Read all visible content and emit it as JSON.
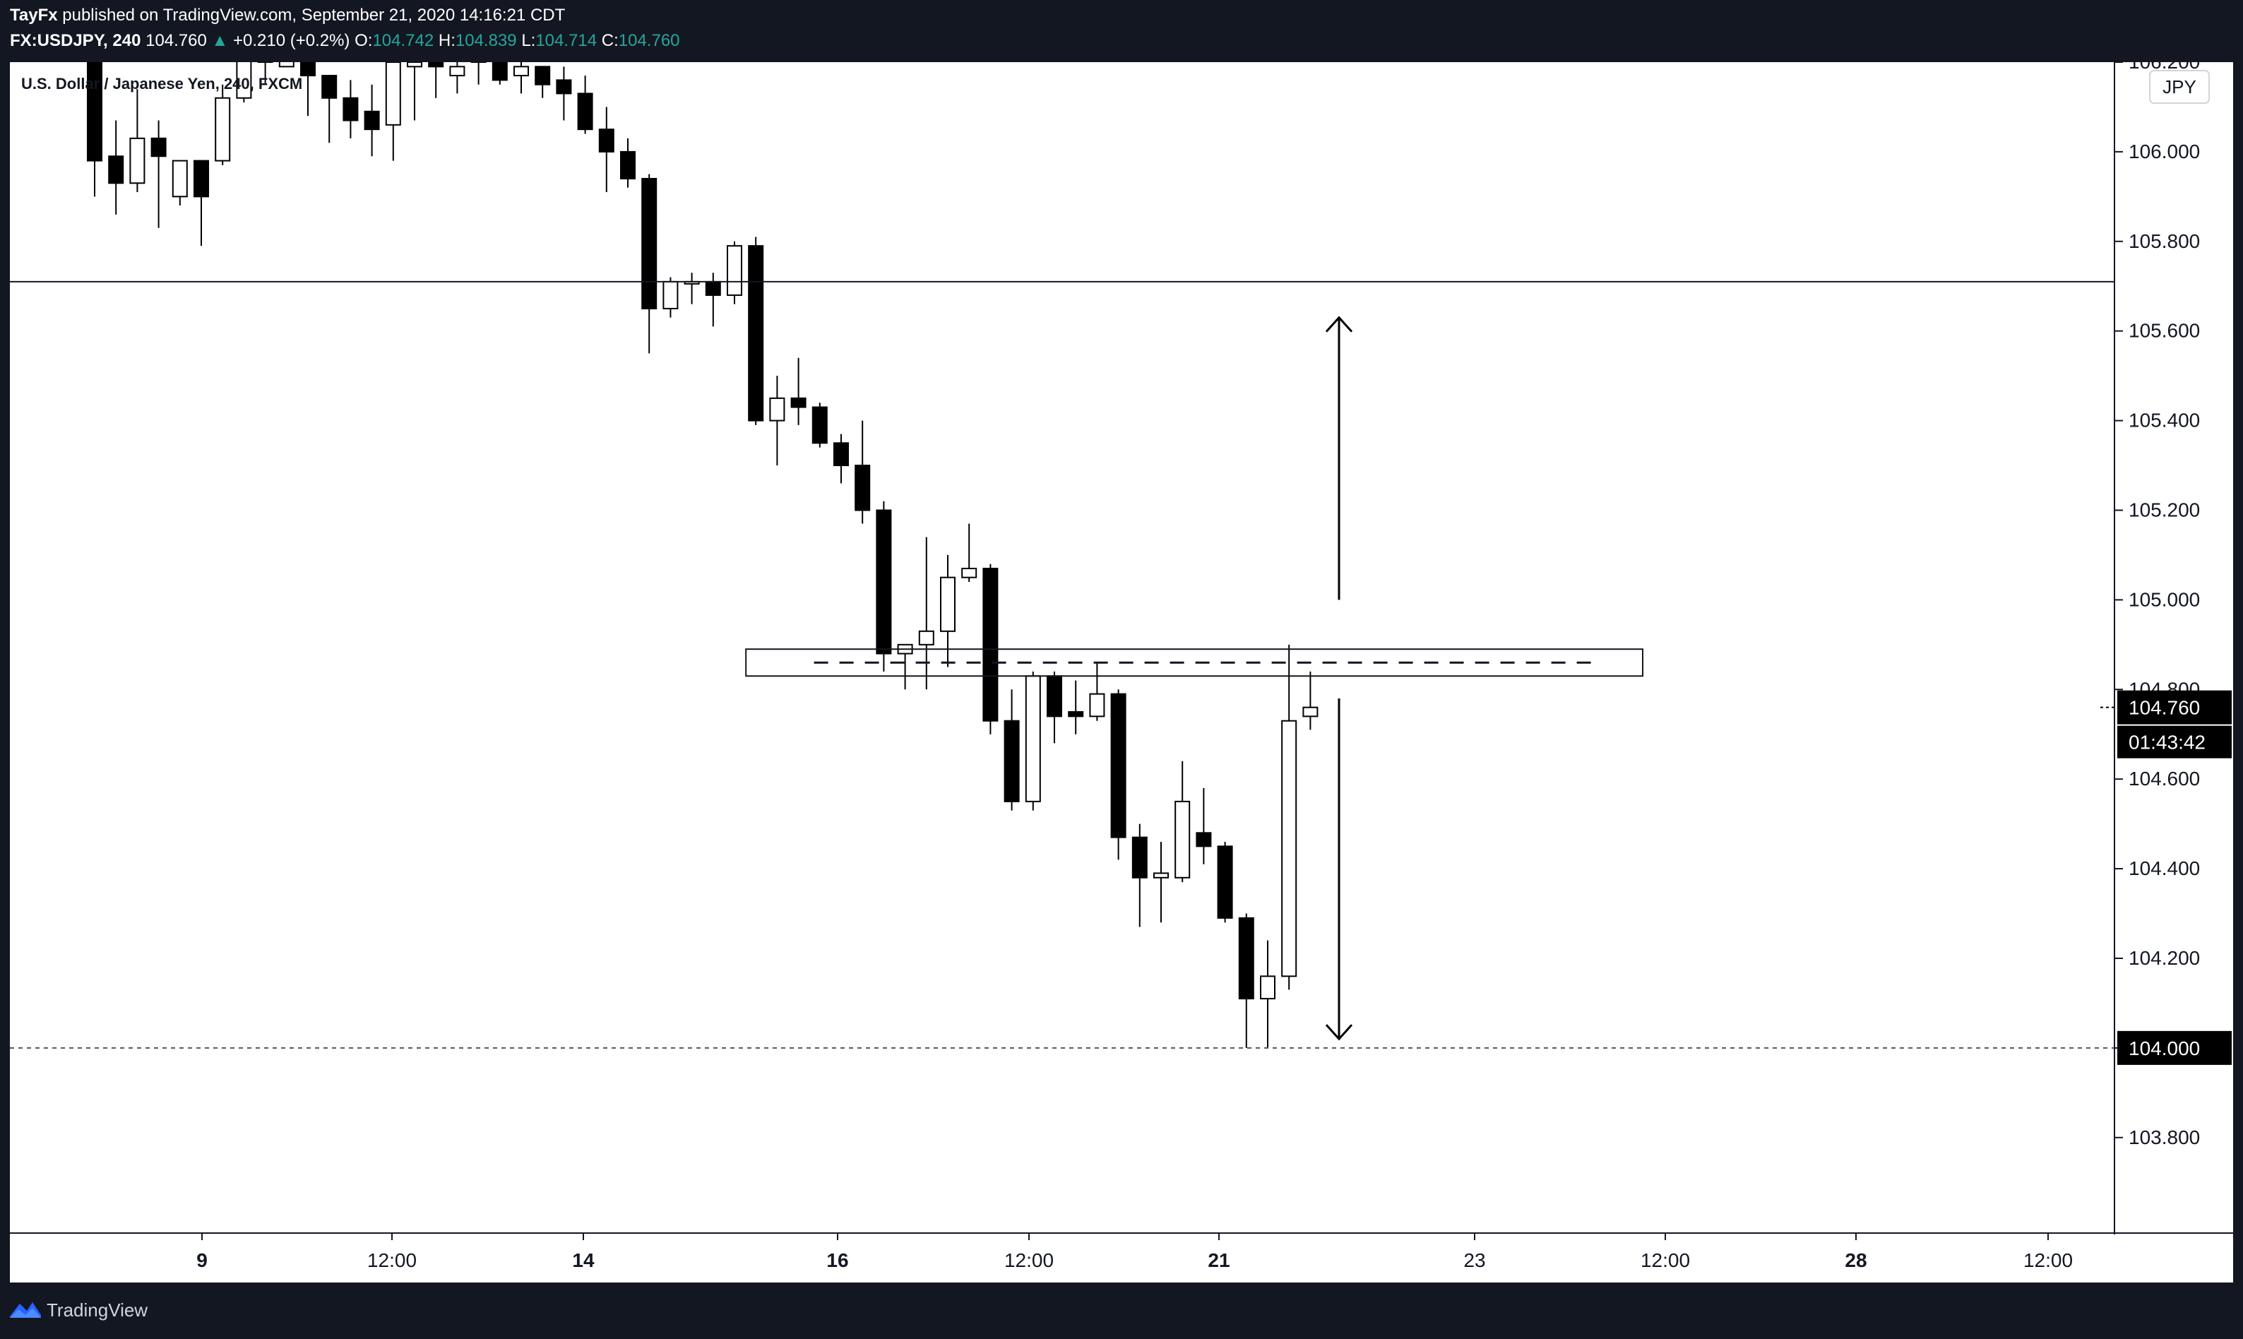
{
  "header": {
    "publisher": "TayFx",
    "published_text": "published on TradingView.com, September 21, 2020 14:16:21 CDT",
    "symbol": "FX:USDJPY, 240",
    "last": "104.760",
    "change_arrow": "▲",
    "change": "+0.210 (+0.2%)",
    "o_label": "O:",
    "o_value": "104.742",
    "h_label": "H:",
    "h_value": "104.839",
    "l_label": "L:",
    "l_value": "104.714",
    "c_label": "C:",
    "c_value": "104.760"
  },
  "chart_title": "U.S. Dollar / Japanese Yen, 240, FXCM",
  "currency_badge": "JPY",
  "footer": {
    "brand": "TradingView"
  },
  "chart_data": {
    "type": "candlestick",
    "title": "U.S. Dollar / Japanese Yen, 240, FXCM",
    "ylim": [
      103.59,
      106.2
    ],
    "y_ticks": [
      "103.800",
      "104.000",
      "104.200",
      "104.400",
      "104.600",
      "104.800",
      "105.000",
      "105.200",
      "105.400",
      "105.600",
      "105.800",
      "106.000",
      "106.200"
    ],
    "x_ticks": [
      "9",
      "12:00",
      "14",
      "16",
      "12:00",
      "21",
      "23",
      "12:00",
      "28",
      "12:00"
    ],
    "x_ticks_bold": [
      "9",
      "14",
      "16",
      "21",
      "28"
    ],
    "last_price_label": "104.760",
    "countdown_label": "01:43:42",
    "level_label": "104.000",
    "candles": [
      {
        "o": 106.29,
        "h": 106.3,
        "l": 105.9,
        "c": 105.98
      },
      {
        "o": 105.99,
        "h": 106.07,
        "l": 105.86,
        "c": 105.93
      },
      {
        "o": 105.93,
        "h": 106.14,
        "l": 105.91,
        "c": 106.03
      },
      {
        "o": 106.03,
        "h": 106.07,
        "l": 105.83,
        "c": 105.99
      },
      {
        "o": 105.9,
        "h": 105.98,
        "l": 105.88,
        "c": 105.98
      },
      {
        "o": 105.98,
        "h": 105.98,
        "l": 105.79,
        "c": 105.9
      },
      {
        "o": 105.98,
        "h": 106.15,
        "l": 105.97,
        "c": 106.12
      },
      {
        "o": 106.12,
        "h": 106.3,
        "l": 106.11,
        "c": 106.25
      },
      {
        "o": 106.25,
        "h": 106.3,
        "l": 106.15,
        "c": 106.2
      },
      {
        "o": 106.19,
        "h": 106.28,
        "l": 106.19,
        "c": 106.22
      },
      {
        "o": 106.22,
        "h": 106.23,
        "l": 106.08,
        "c": 106.17
      },
      {
        "o": 106.17,
        "h": 106.17,
        "l": 106.02,
        "c": 106.12
      },
      {
        "o": 106.12,
        "h": 106.16,
        "l": 106.03,
        "c": 106.07
      },
      {
        "o": 106.09,
        "h": 106.15,
        "l": 105.99,
        "c": 106.05
      },
      {
        "o": 106.06,
        "h": 106.23,
        "l": 105.98,
        "c": 106.2
      },
      {
        "o": 106.19,
        "h": 106.22,
        "l": 106.07,
        "c": 106.2
      },
      {
        "o": 106.2,
        "h": 106.22,
        "l": 106.12,
        "c": 106.19
      },
      {
        "o": 106.17,
        "h": 106.24,
        "l": 106.13,
        "c": 106.19
      },
      {
        "o": 106.2,
        "h": 106.3,
        "l": 106.15,
        "c": 106.25
      },
      {
        "o": 106.24,
        "h": 106.27,
        "l": 106.15,
        "c": 106.16
      },
      {
        "o": 106.17,
        "h": 106.25,
        "l": 106.13,
        "c": 106.19
      },
      {
        "o": 106.19,
        "h": 106.19,
        "l": 106.12,
        "c": 106.15
      },
      {
        "o": 106.16,
        "h": 106.19,
        "l": 106.07,
        "c": 106.13
      },
      {
        "o": 106.13,
        "h": 106.17,
        "l": 106.04,
        "c": 106.05
      },
      {
        "o": 106.05,
        "h": 106.1,
        "l": 105.91,
        "c": 106.0
      },
      {
        "o": 106.0,
        "h": 106.03,
        "l": 105.92,
        "c": 105.94
      },
      {
        "o": 105.94,
        "h": 105.95,
        "l": 105.55,
        "c": 105.65
      },
      {
        "o": 105.65,
        "h": 105.72,
        "l": 105.63,
        "c": 105.71
      },
      {
        "o": 105.71,
        "h": 105.73,
        "l": 105.66,
        "c": 105.71
      },
      {
        "o": 105.71,
        "h": 105.73,
        "l": 105.61,
        "c": 105.68
      },
      {
        "o": 105.68,
        "h": 105.8,
        "l": 105.66,
        "c": 105.79
      },
      {
        "o": 105.79,
        "h": 105.81,
        "l": 105.39,
        "c": 105.4
      },
      {
        "o": 105.4,
        "h": 105.5,
        "l": 105.3,
        "c": 105.45
      },
      {
        "o": 105.45,
        "h": 105.54,
        "l": 105.39,
        "c": 105.43
      },
      {
        "o": 105.43,
        "h": 105.44,
        "l": 105.34,
        "c": 105.35
      },
      {
        "o": 105.35,
        "h": 105.37,
        "l": 105.26,
        "c": 105.3
      },
      {
        "o": 105.3,
        "h": 105.4,
        "l": 105.17,
        "c": 105.2
      },
      {
        "o": 105.2,
        "h": 105.22,
        "l": 104.84,
        "c": 104.88
      },
      {
        "o": 104.88,
        "h": 104.9,
        "l": 104.8,
        "c": 104.9
      },
      {
        "o": 104.9,
        "h": 105.14,
        "l": 104.8,
        "c": 104.93
      },
      {
        "o": 104.93,
        "h": 105.1,
        "l": 104.85,
        "c": 105.05
      },
      {
        "o": 105.05,
        "h": 105.17,
        "l": 105.04,
        "c": 105.07
      },
      {
        "o": 105.07,
        "h": 105.08,
        "l": 104.7,
        "c": 104.73
      },
      {
        "o": 104.73,
        "h": 104.8,
        "l": 104.53,
        "c": 104.55
      },
      {
        "o": 104.55,
        "h": 104.84,
        "l": 104.53,
        "c": 104.83
      },
      {
        "o": 104.83,
        "h": 104.84,
        "l": 104.68,
        "c": 104.74
      },
      {
        "o": 104.75,
        "h": 104.82,
        "l": 104.7,
        "c": 104.74
      },
      {
        "o": 104.74,
        "h": 104.86,
        "l": 104.73,
        "c": 104.79
      },
      {
        "o": 104.79,
        "h": 104.8,
        "l": 104.42,
        "c": 104.47
      },
      {
        "o": 104.47,
        "h": 104.5,
        "l": 104.27,
        "c": 104.38
      },
      {
        "o": 104.38,
        "h": 104.46,
        "l": 104.28,
        "c": 104.39
      },
      {
        "o": 104.38,
        "h": 104.64,
        "l": 104.37,
        "c": 104.55
      },
      {
        "o": 104.48,
        "h": 104.58,
        "l": 104.41,
        "c": 104.45
      },
      {
        "o": 104.45,
        "h": 104.46,
        "l": 104.28,
        "c": 104.29
      },
      {
        "o": 104.29,
        "h": 104.3,
        "l": 104.0,
        "c": 104.11
      },
      {
        "o": 104.11,
        "h": 104.24,
        "l": 104.0,
        "c": 104.16
      },
      {
        "o": 104.16,
        "h": 104.9,
        "l": 104.13,
        "c": 104.73
      },
      {
        "o": 104.74,
        "h": 104.84,
        "l": 104.71,
        "c": 104.76
      }
    ],
    "horizontal_lines": [
      {
        "value": 105.71,
        "style": "solid"
      },
      {
        "value": 104.0,
        "style": "dotted"
      }
    ],
    "zone": {
      "low": 104.83,
      "high": 104.89,
      "mid": 104.86,
      "x_start": "15",
      "x_end": "26"
    },
    "arrows": [
      {
        "from": 105.0,
        "to": 105.63,
        "direction": "up"
      },
      {
        "from": 104.78,
        "to": 104.02,
        "direction": "down"
      }
    ]
  },
  "colors": {
    "background": "#131722",
    "plot_bg": "#ffffff",
    "candle": "#000000",
    "ohlc_accent": "#26a69a"
  }
}
